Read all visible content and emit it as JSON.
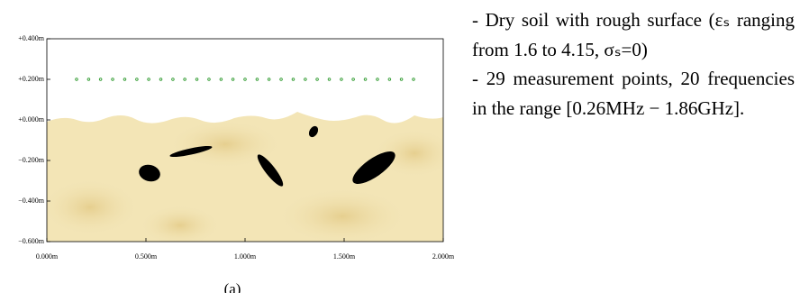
{
  "chart_data": {
    "type": "scatter",
    "x": [
      0.15,
      0.211,
      0.271,
      0.332,
      0.393,
      0.454,
      0.514,
      0.575,
      0.636,
      0.696,
      0.757,
      0.818,
      0.879,
      0.939,
      1.0,
      1.061,
      1.121,
      1.182,
      1.243,
      1.304,
      1.364,
      1.425,
      1.486,
      1.546,
      1.607,
      1.668,
      1.729,
      1.789,
      1.85
    ],
    "values": [
      0.2,
      0.2,
      0.2,
      0.2,
      0.2,
      0.2,
      0.2,
      0.2,
      0.2,
      0.2,
      0.2,
      0.2,
      0.2,
      0.2,
      0.2,
      0.2,
      0.2,
      0.2,
      0.2,
      0.2,
      0.2,
      0.2,
      0.2,
      0.2,
      0.2,
      0.2,
      0.2,
      0.2,
      0.2
    ],
    "color": "#2e9a2e",
    "xlim": [
      0,
      2
    ],
    "ylim": [
      -0.6,
      0.4
    ],
    "xticks": [
      {
        "value": 0,
        "label": "0.000m"
      },
      {
        "value": 0.5,
        "label": "0.500m"
      },
      {
        "value": 1,
        "label": "1.000m"
      },
      {
        "value": 1.5,
        "label": "1.500m"
      },
      {
        "value": 2,
        "label": "2.000m"
      }
    ],
    "yticks": [
      {
        "value": 0.4,
        "label": "+0.400m"
      },
      {
        "value": 0.2,
        "label": "+0.200m"
      },
      {
        "value": 0,
        "label": "+0.000m"
      },
      {
        "value": -0.2,
        "label": "−0.200m"
      },
      {
        "value": -0.4,
        "label": "−0.400m"
      },
      {
        "value": -0.6,
        "label": "−0.600m"
      }
    ],
    "caption": "(a)"
  },
  "description": [
    "- Dry soil with rough surface (εₛ ranging from 1.6 to 4.15, σₛ=0)",
    "- 29 measurement points, 20 frequencies in the range [0.26MHz − 1.86GHz]."
  ]
}
